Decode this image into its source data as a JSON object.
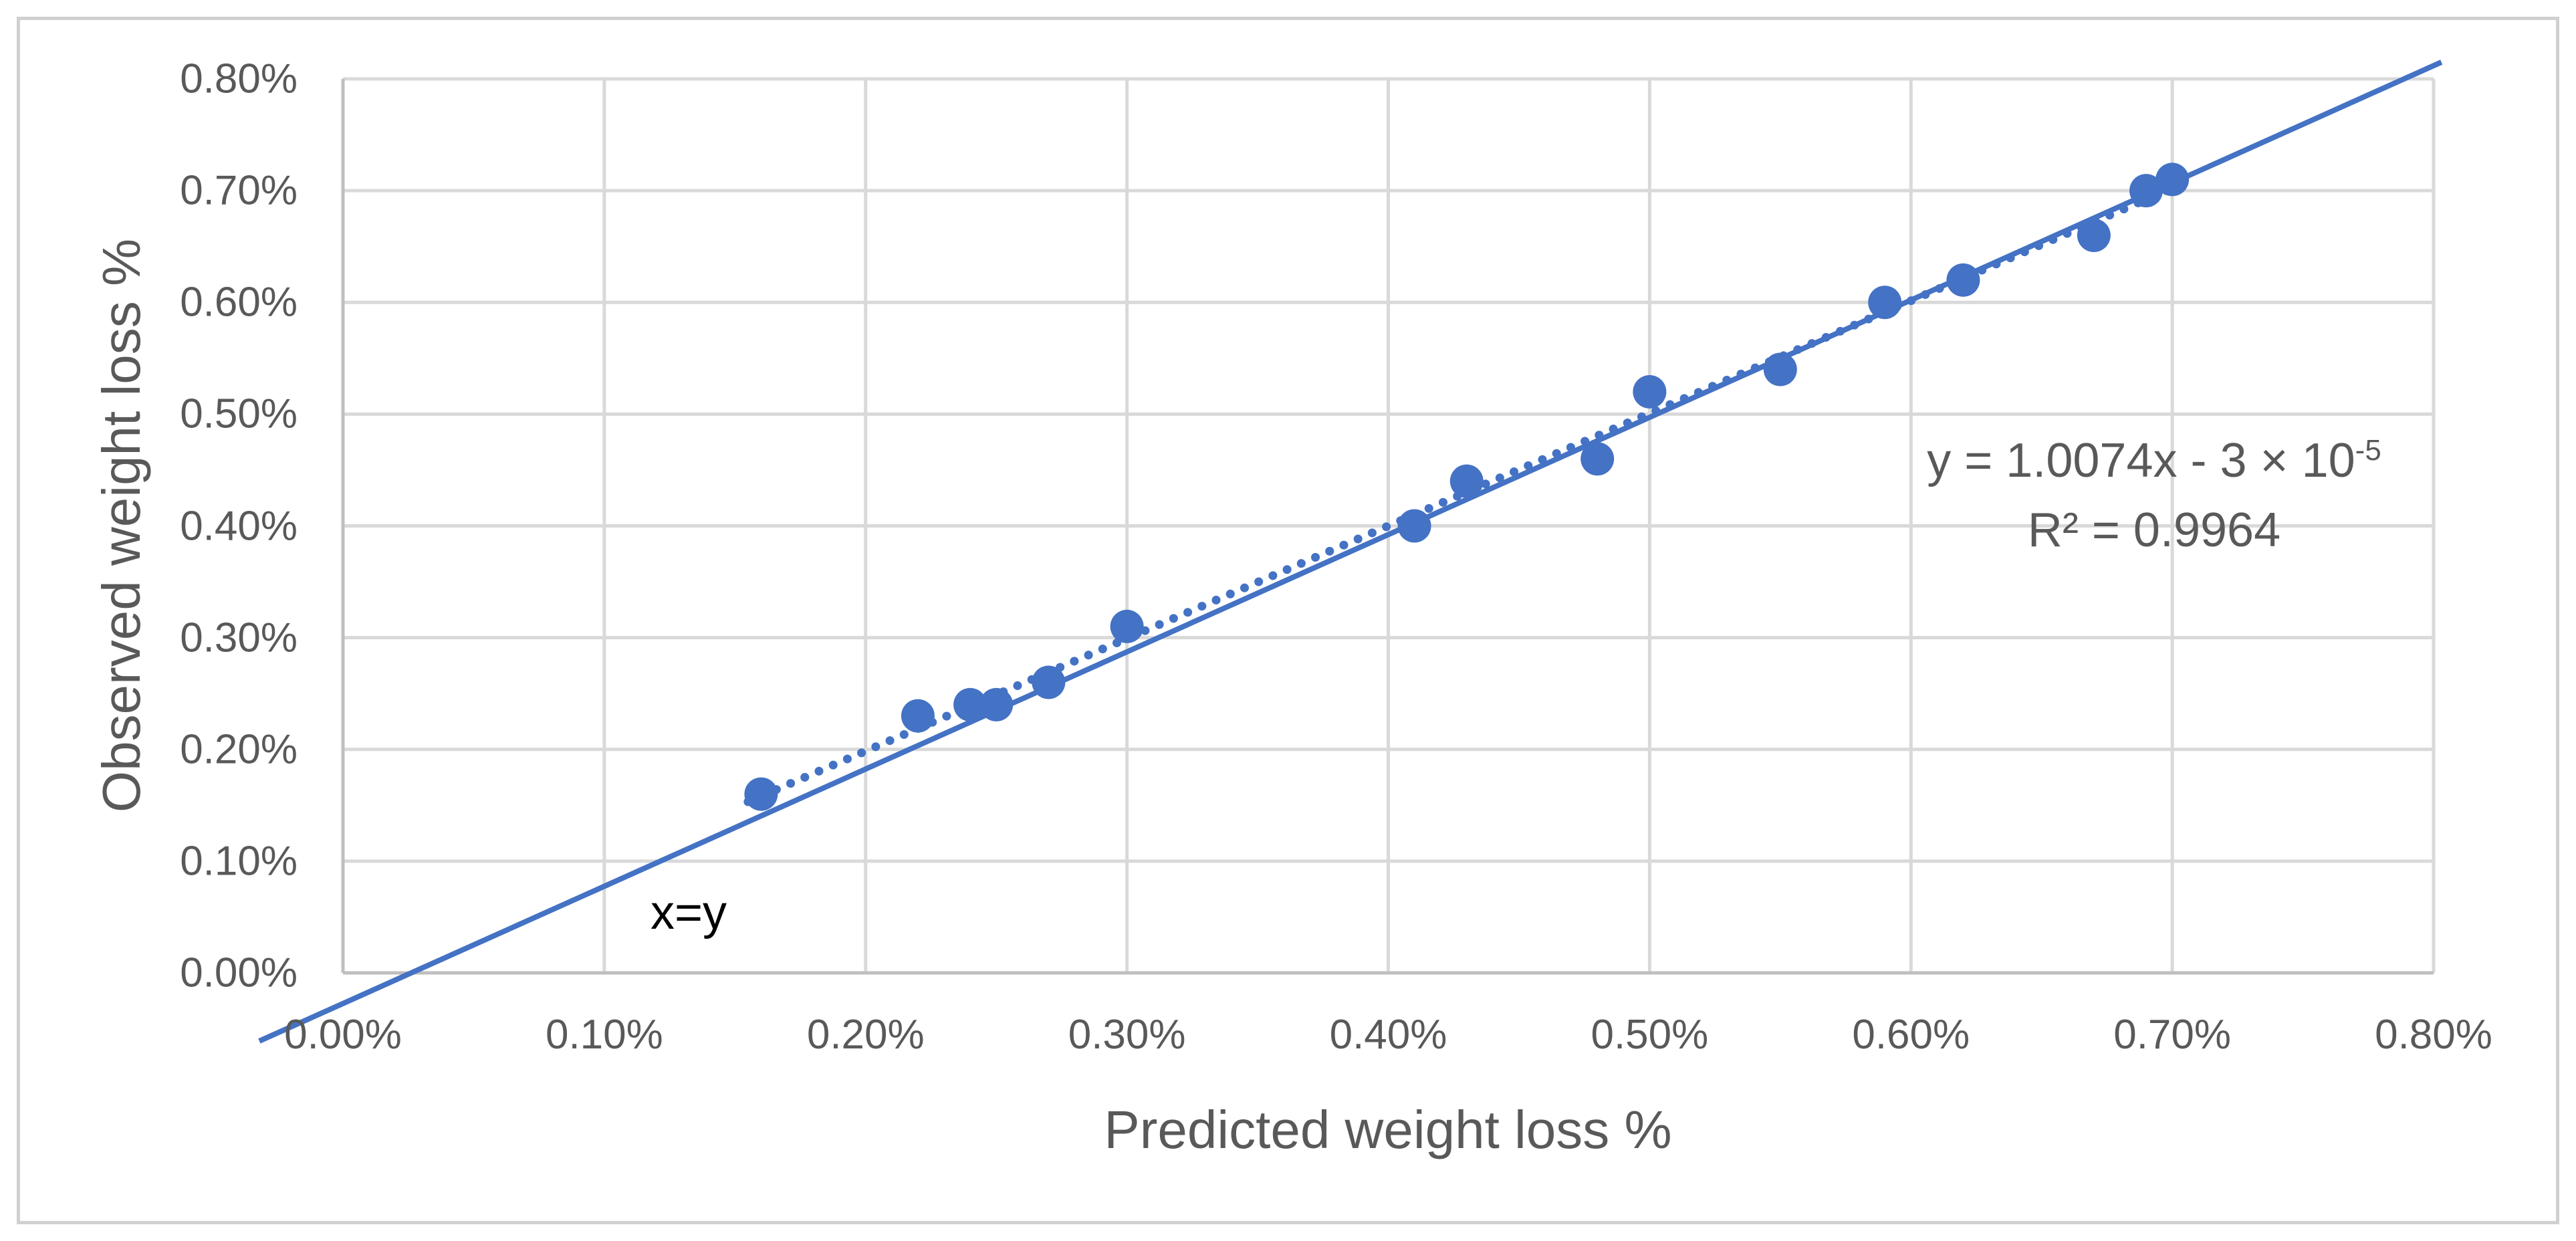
{
  "colors": {
    "series_blue": "#4472C4",
    "gridline": "#D9D9D9",
    "axis_line": "#BFBFBF",
    "tick_text": "#595959",
    "title_text": "#595959",
    "equation_text": "#595959",
    "xy_label_text": "#000000",
    "border": "#D0D0D0",
    "background": "#FFFFFF"
  },
  "axes": {
    "x_title": "Predicted weight loss %",
    "y_title": "Observed weight loss %"
  },
  "annotations": {
    "equation_prefix": "y = 1.0074x - 3 × 10",
    "equation_exponent": "-5",
    "r_squared": "R² = 0.9964",
    "identity_label": "x=y"
  },
  "chart_data": {
    "type": "scatter",
    "title": "",
    "xlabel": "Predicted weight loss %",
    "ylabel": "Observed weight loss %",
    "xlim": [
      0,
      0.8
    ],
    "ylim": [
      0,
      0.8
    ],
    "grid": true,
    "x_tick_values": [
      0,
      0.1,
      0.2,
      0.3,
      0.4,
      0.5,
      0.6,
      0.7,
      0.8
    ],
    "x_tick_labels": [
      "0.00%",
      "0.10%",
      "0.20%",
      "0.30%",
      "0.40%",
      "0.50%",
      "0.60%",
      "0.70%",
      "0.80%"
    ],
    "y_tick_values": [
      0,
      0.1,
      0.2,
      0.3,
      0.4,
      0.5,
      0.6,
      0.7,
      0.8
    ],
    "y_tick_labels": [
      "0.00%",
      "0.10%",
      "0.20%",
      "0.30%",
      "0.40%",
      "0.50%",
      "0.60%",
      "0.70%",
      "0.80%"
    ],
    "points_unit": "percent",
    "points": [
      [
        0.16,
        0.16
      ],
      [
        0.22,
        0.23
      ],
      [
        0.24,
        0.24
      ],
      [
        0.25,
        0.24
      ],
      [
        0.27,
        0.26
      ],
      [
        0.3,
        0.31
      ],
      [
        0.41,
        0.4
      ],
      [
        0.43,
        0.44
      ],
      [
        0.48,
        0.46
      ],
      [
        0.5,
        0.52
      ],
      [
        0.55,
        0.54
      ],
      [
        0.59,
        0.6
      ],
      [
        0.62,
        0.62
      ],
      [
        0.67,
        0.66
      ],
      [
        0.69,
        0.7
      ],
      [
        0.7,
        0.71
      ]
    ],
    "identity_line": {
      "label": "x=y",
      "x1": -0.032,
      "y1": -0.061,
      "x2": 0.803,
      "y2": 0.815
    },
    "trendline": {
      "style": "dotted",
      "slope": 1.0074,
      "intercept": -0.003,
      "x_start": 0.155,
      "x_end": 0.705,
      "equation": "y = 1.0074x - 3 × 10^-5",
      "r_squared": 0.9964
    }
  }
}
